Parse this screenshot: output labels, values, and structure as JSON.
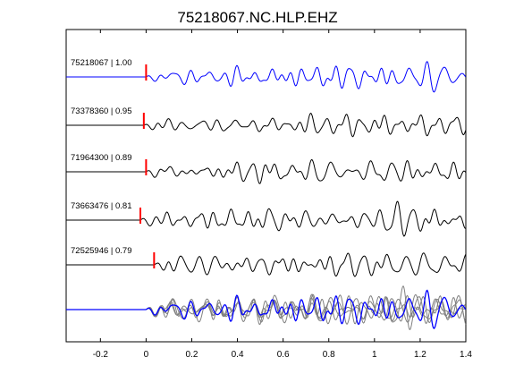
{
  "chart_data": {
    "type": "line",
    "title": "75218067.NC.HLP.EHZ",
    "xlabel": "",
    "ylabel": "",
    "xlim": [
      -0.35,
      1.4
    ],
    "x_ticks": [
      -0.2,
      0,
      0.2,
      0.4,
      0.6,
      0.8,
      1,
      1.2,
      1.4
    ],
    "x_tick_labels": [
      "-0.2",
      "0",
      "0.2",
      "0.4",
      "0.6",
      "0.8",
      "1",
      "1.2",
      "1.4"
    ],
    "grid": false,
    "colors": {
      "reference": "#0000ff",
      "trace": "#000000",
      "overlay": "#808080",
      "pick": "#ff0000"
    },
    "series": [
      {
        "label": "75218067 | 1.00",
        "pick_time": 0.0,
        "reference": true,
        "seed": 11
      },
      {
        "label": "73378360 | 0.95",
        "pick_time": -0.01,
        "reference": false,
        "seed": 23
      },
      {
        "label": "71964300 | 0.89",
        "pick_time": 0.0,
        "reference": false,
        "seed": 37
      },
      {
        "label": "73663476 | 0.81",
        "pick_time": -0.025,
        "reference": false,
        "seed": 41
      },
      {
        "label": "72525946 | 0.79",
        "pick_time": 0.035,
        "reference": false,
        "seed": 53
      }
    ],
    "overlay_stack": true
  }
}
